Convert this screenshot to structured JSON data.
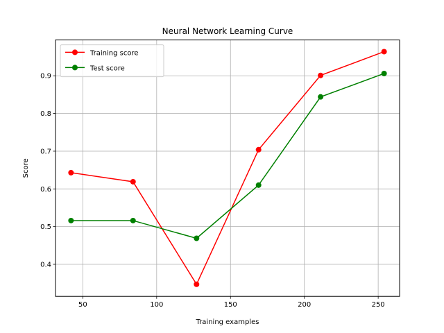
{
  "chart_data": {
    "type": "line",
    "title": "Neural Network Learning Curve",
    "xlabel": "Training examples",
    "ylabel": "Score",
    "xlim": [
      31.5,
      264.5
    ],
    "ylim": [
      0.315,
      0.995
    ],
    "xticks": [
      50,
      100,
      150,
      200,
      250
    ],
    "yticks": [
      0.4,
      0.5,
      0.6,
      0.7,
      0.8,
      0.9
    ],
    "grid": true,
    "legend": "top-left",
    "x": [
      42,
      84,
      127,
      169,
      211,
      254
    ],
    "series": [
      {
        "name": "Training score",
        "color": "#ff0000",
        "marker": "circle",
        "values": [
          0.643,
          0.619,
          0.347,
          0.704,
          0.901,
          0.964
        ]
      },
      {
        "name": "Test score",
        "color": "#008000",
        "marker": "circle",
        "values": [
          0.516,
          0.516,
          0.469,
          0.61,
          0.844,
          0.906
        ]
      }
    ]
  }
}
